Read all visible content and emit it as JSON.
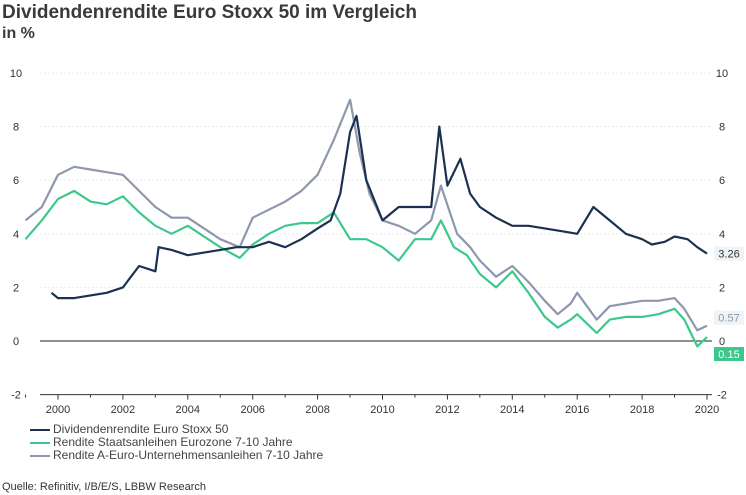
{
  "title": "Dividendenrendite Euro Stoxx 50 im Vergleich",
  "subtitle": "in %",
  "source": "Quelle: Refinitiv, I/B/E/S, LBBW Research",
  "chart_data": {
    "type": "line",
    "title": "Dividendenrendite Euro Stoxx 50 im Vergleich",
    "ylabel": "in %",
    "xlim": [
      1999,
      2020.2
    ],
    "ylim": [
      -2,
      10
    ],
    "xticks": [
      "2000",
      "2002",
      "2004",
      "2006",
      "2008",
      "2010",
      "2012",
      "2014",
      "2016",
      "2018",
      "2020"
    ],
    "yticks": [
      "-2",
      "0",
      "2",
      "4",
      "6",
      "8",
      "10"
    ],
    "grid": true,
    "legend": "bottom-left",
    "series": [
      {
        "name": "Dividendenrendite Euro Stoxx 50",
        "color": "#1c3050",
        "end_label": "3.26",
        "x": [
          1999.8,
          2000,
          2000.5,
          2001,
          2001.5,
          2002,
          2002.5,
          2003,
          2003.1,
          2003.5,
          2004,
          2004.5,
          2005,
          2005.5,
          2006,
          2006.5,
          2007,
          2007.5,
          2008,
          2008.4,
          2008.7,
          2009,
          2009.2,
          2009.5,
          2010,
          2010.5,
          2011,
          2011.5,
          2011.75,
          2012,
          2012.4,
          2012.7,
          2013,
          2013.5,
          2014,
          2014.5,
          2015,
          2015.5,
          2016,
          2016.5,
          2017,
          2017.5,
          2018,
          2018.3,
          2018.7,
          2019,
          2019.4,
          2019.7,
          2020
        ],
        "y": [
          1.8,
          1.6,
          1.6,
          1.7,
          1.8,
          2.0,
          2.8,
          2.6,
          3.5,
          3.4,
          3.2,
          3.3,
          3.4,
          3.5,
          3.5,
          3.7,
          3.5,
          3.8,
          4.2,
          4.5,
          5.5,
          7.8,
          8.4,
          6.0,
          4.5,
          5.0,
          5.0,
          5.0,
          8.0,
          5.8,
          6.8,
          5.5,
          5.0,
          4.6,
          4.3,
          4.3,
          4.2,
          4.1,
          4.0,
          5.0,
          4.5,
          4.0,
          3.8,
          3.6,
          3.7,
          3.9,
          3.8,
          3.5,
          3.26
        ]
      },
      {
        "name": "Rendite Staatsanleihen Eurozone 7-10 Jahre",
        "color": "#3cc88c",
        "end_label": "0.15",
        "x": [
          1999,
          1999.5,
          2000,
          2000.5,
          2001,
          2001.5,
          2002,
          2002.5,
          2003,
          2003.5,
          2004,
          2004.5,
          2005,
          2005.6,
          2006,
          2006.5,
          2007,
          2007.5,
          2008,
          2008.5,
          2009,
          2009.5,
          2010,
          2010.5,
          2011,
          2011.5,
          2011.8,
          2012.2,
          2012.6,
          2013,
          2013.5,
          2014,
          2014.5,
          2015,
          2015.4,
          2015.8,
          2016,
          2016.6,
          2017,
          2017.5,
          2018,
          2018.5,
          2019,
          2019.3,
          2019.7,
          2020
        ],
        "y": [
          3.8,
          4.5,
          5.3,
          5.6,
          5.2,
          5.1,
          5.4,
          4.8,
          4.3,
          4.0,
          4.3,
          3.9,
          3.5,
          3.1,
          3.6,
          4.0,
          4.3,
          4.4,
          4.4,
          4.8,
          3.8,
          3.8,
          3.5,
          3.0,
          3.8,
          3.8,
          4.5,
          3.5,
          3.2,
          2.5,
          2.0,
          2.6,
          1.8,
          0.9,
          0.5,
          0.8,
          1.0,
          0.3,
          0.8,
          0.9,
          0.9,
          1.0,
          1.2,
          0.8,
          -0.2,
          0.15
        ]
      },
      {
        "name": "Rendite A-Euro-Unternehmensanleihen 7-10 Jahre",
        "color": "#8e97ad",
        "end_label": "0.57",
        "x": [
          1999,
          1999.5,
          2000,
          2000.5,
          2001,
          2001.5,
          2002,
          2002.5,
          2003,
          2003.5,
          2004,
          2004.5,
          2005,
          2005.6,
          2006,
          2006.5,
          2007,
          2007.5,
          2008,
          2008.5,
          2009,
          2009.3,
          2009.6,
          2010,
          2010.5,
          2011,
          2011.5,
          2011.8,
          2012.3,
          2012.7,
          2013,
          2013.5,
          2014,
          2014.5,
          2015,
          2015.4,
          2015.8,
          2016,
          2016.6,
          2017,
          2017.5,
          2018,
          2018.5,
          2019,
          2019.3,
          2019.7,
          2020
        ],
        "y": [
          4.5,
          5.0,
          6.2,
          6.5,
          6.4,
          6.3,
          6.2,
          5.6,
          5.0,
          4.6,
          4.6,
          4.2,
          3.8,
          3.5,
          4.6,
          4.9,
          5.2,
          5.6,
          6.2,
          7.5,
          9.0,
          7.0,
          5.5,
          4.5,
          4.3,
          4.0,
          4.5,
          5.8,
          4.0,
          3.5,
          3.0,
          2.4,
          2.8,
          2.2,
          1.5,
          1.0,
          1.4,
          1.8,
          0.8,
          1.3,
          1.4,
          1.5,
          1.5,
          1.6,
          1.2,
          0.4,
          0.57
        ]
      }
    ]
  }
}
